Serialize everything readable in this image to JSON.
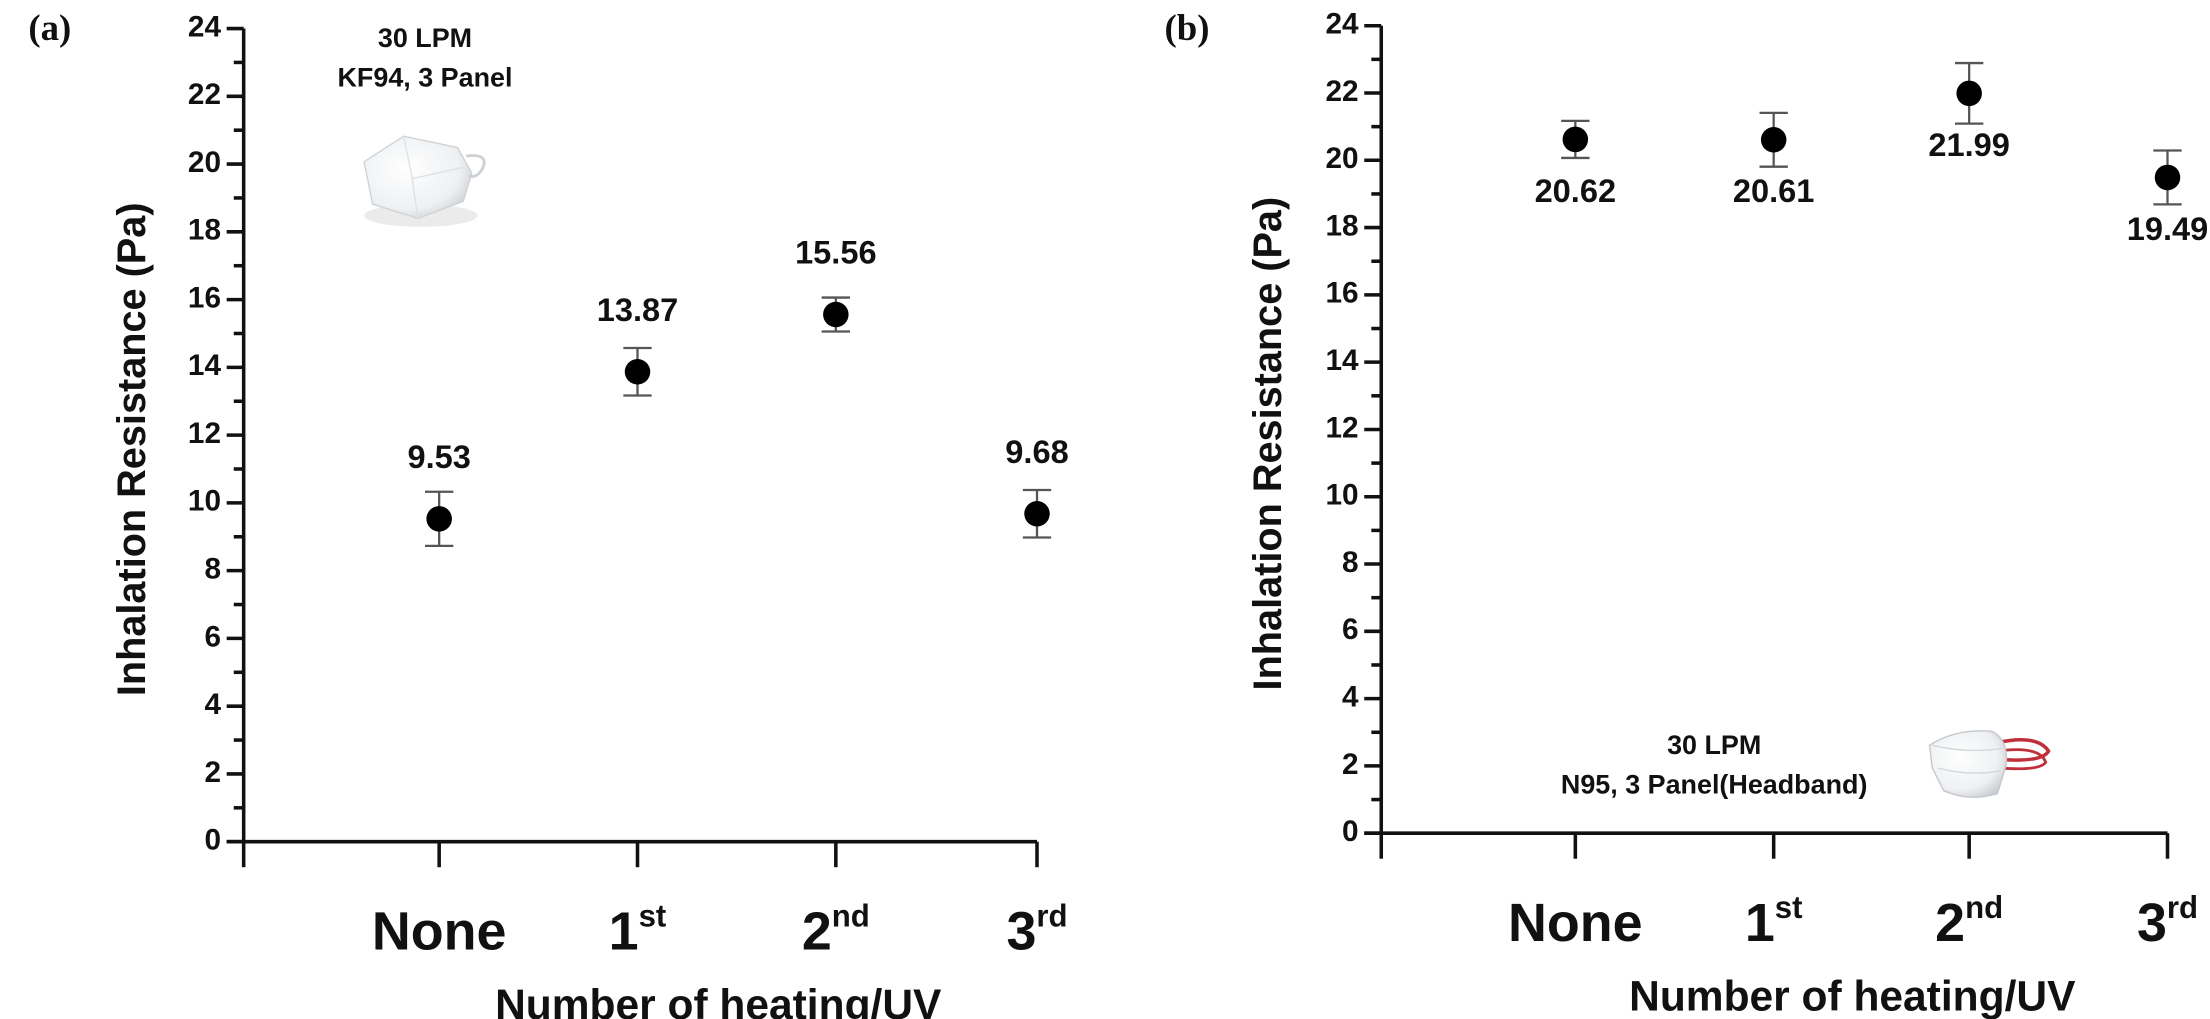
{
  "chart_data": [
    {
      "panel_label": "(a)",
      "type": "scatter",
      "xlabel": "Number of heating/UV",
      "ylabel": "Inhalation Resistance (Pa)",
      "ylim": [
        0,
        24
      ],
      "yticks": [
        0,
        2,
        4,
        6,
        8,
        10,
        12,
        14,
        16,
        18,
        20,
        22,
        24
      ],
      "categories": [
        {
          "base": "None",
          "sup": ""
        },
        {
          "base": "1",
          "sup": "st"
        },
        {
          "base": "2",
          "sup": "nd"
        },
        {
          "base": "3",
          "sup": "rd"
        }
      ],
      "values": [
        9.53,
        13.87,
        15.56,
        9.68
      ],
      "error": [
        0.8,
        0.7,
        0.5,
        0.7
      ],
      "data_labels": [
        "9.53",
        "13.87",
        "15.56",
        "9.68"
      ],
      "data_label_position": "above",
      "annotation": [
        "30 LPM",
        "KF94, 3 Panel"
      ],
      "image": "kf94-mask-photo",
      "grid": false,
      "marker_color": "#000000"
    },
    {
      "panel_label": "(b)",
      "type": "scatter",
      "xlabel": "Number of heating/UV",
      "ylabel": "Inhalation Resistance (Pa)",
      "ylim": [
        0,
        24
      ],
      "yticks": [
        0,
        2,
        4,
        6,
        8,
        10,
        12,
        14,
        16,
        18,
        20,
        22,
        24
      ],
      "categories": [
        {
          "base": "None",
          "sup": ""
        },
        {
          "base": "1",
          "sup": "st"
        },
        {
          "base": "2",
          "sup": "nd"
        },
        {
          "base": "3",
          "sup": "rd"
        }
      ],
      "values": [
        20.62,
        20.61,
        21.99,
        19.49
      ],
      "error": [
        0.55,
        0.8,
        0.9,
        0.8
      ],
      "data_labels": [
        "20.62",
        "20.61",
        "21.99",
        "19.49"
      ],
      "data_label_position": "below",
      "annotation": [
        "30 LPM",
        "N95, 3 Panel(Headband)"
      ],
      "image": "n95-headband-mask-photo",
      "grid": false,
      "marker_color": "#000000"
    }
  ]
}
